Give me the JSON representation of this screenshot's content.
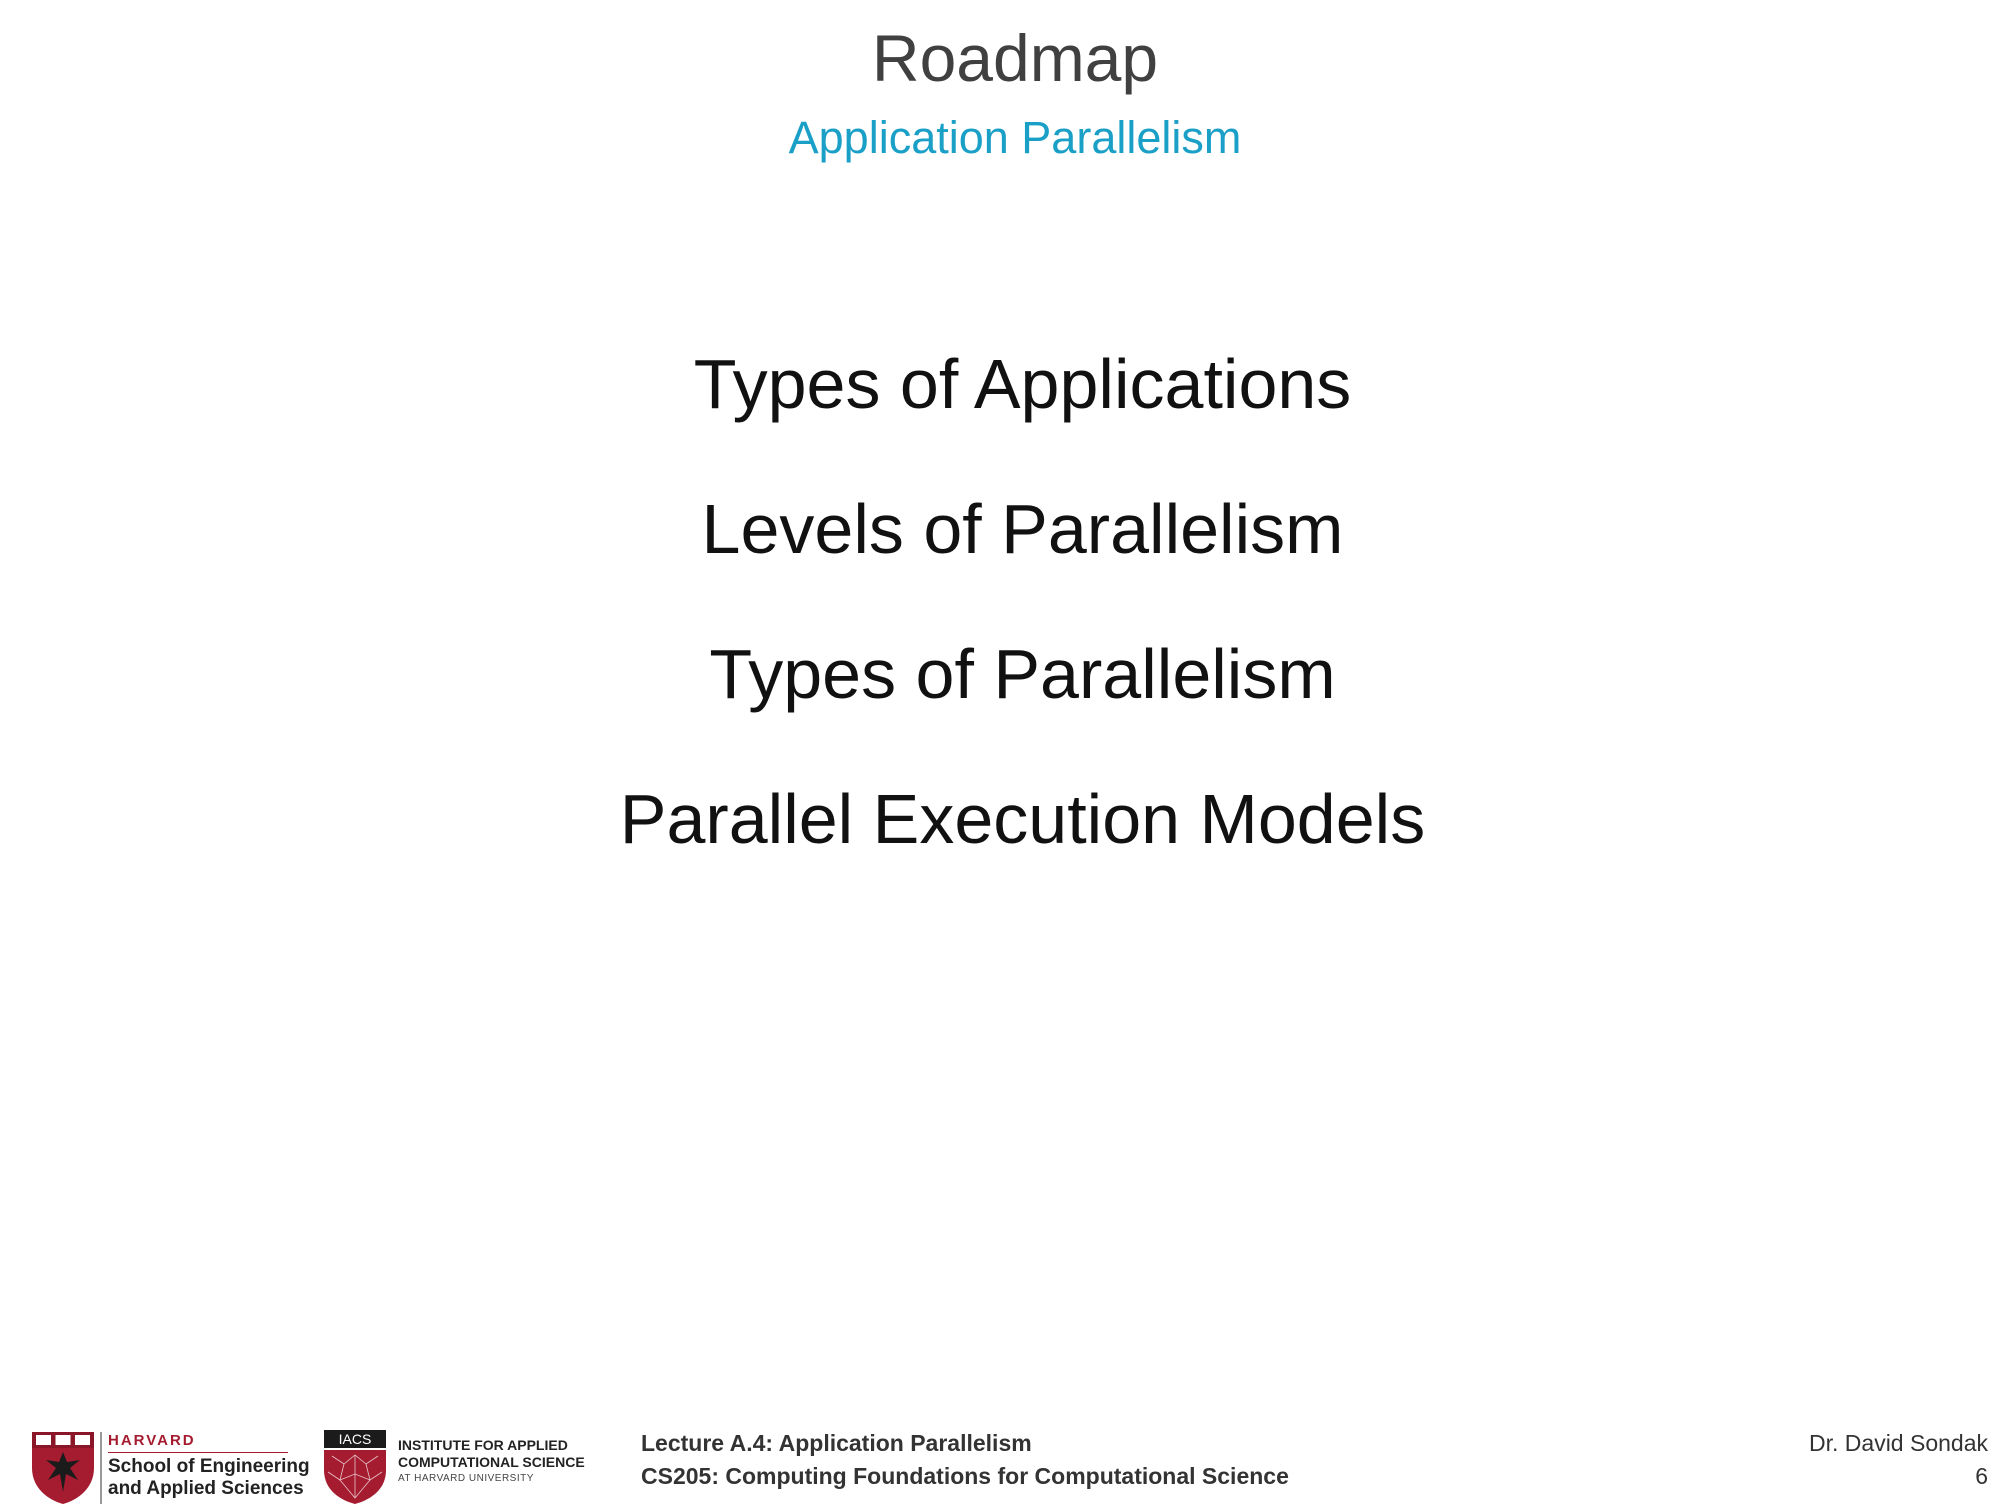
{
  "header": {
    "title": "Roadmap",
    "subtitle": "Application Parallelism"
  },
  "agenda": {
    "items": [
      "Types of Applications",
      "Levels of Parallelism",
      "Types of Parallelism",
      "Parallel Execution Models"
    ]
  },
  "footer": {
    "seas_logo": {
      "harvard": "HARVARD",
      "line1": "School of Engineering",
      "line2": "and Applied Sciences"
    },
    "iacs_logo": {
      "abbrev": "IACS",
      "line1": "INSTITUTE FOR APPLIED",
      "line2": "COMPUTATIONAL SCIENCE",
      "line3": "AT HARVARD UNIVERSITY"
    },
    "lecture": "Lecture A.4: Application Parallelism",
    "course": "CS205: Computing Foundations for Computational Science",
    "author": "Dr. David Sondak",
    "page_number": "6"
  },
  "colors": {
    "title": "#404040",
    "subtitle": "#1a9fc7",
    "body_text": "#111111",
    "harvard_crimson": "#a51c30"
  }
}
